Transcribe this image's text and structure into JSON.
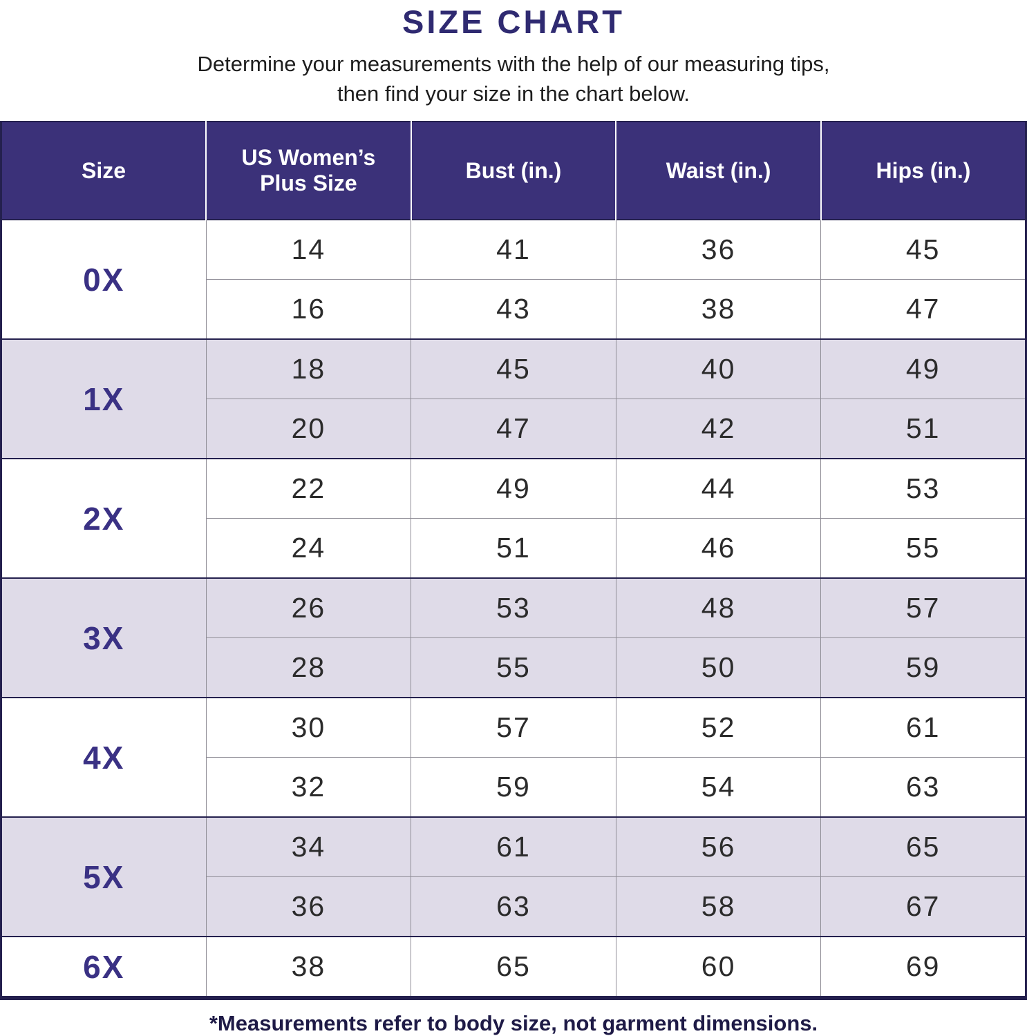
{
  "title": "SIZE CHART",
  "subtitle_line1": "Determine your measurements with the help of our measuring tips,",
  "subtitle_line2": "then find your size in the chart below.",
  "footnote": "*Measurements refer to body size, not garment dimensions.",
  "colors": {
    "header_bg": "#3b3179",
    "accent_title": "#2f2a71",
    "accent_size": "#3a3184",
    "shade": "#dfdbe8",
    "border_dark": "#24204e",
    "border_light": "#8f8d96",
    "text_dark": "#2b2b2b",
    "footnote": "#1e1a46"
  },
  "chart_data": {
    "type": "table",
    "title": "SIZE CHART",
    "headers": [
      "Size",
      "US Women’s Plus Size",
      "Bust (in.)",
      "Waist (in.)",
      "Hips (in.)"
    ],
    "groups": [
      {
        "size": "0X",
        "shaded": false,
        "rows": [
          [
            14,
            41,
            36,
            45
          ],
          [
            16,
            43,
            38,
            47
          ]
        ]
      },
      {
        "size": "1X",
        "shaded": true,
        "rows": [
          [
            18,
            45,
            40,
            49
          ],
          [
            20,
            47,
            42,
            51
          ]
        ]
      },
      {
        "size": "2X",
        "shaded": false,
        "rows": [
          [
            22,
            49,
            44,
            53
          ],
          [
            24,
            51,
            46,
            55
          ]
        ]
      },
      {
        "size": "3X",
        "shaded": true,
        "rows": [
          [
            26,
            53,
            48,
            57
          ],
          [
            28,
            55,
            50,
            59
          ]
        ]
      },
      {
        "size": "4X",
        "shaded": false,
        "rows": [
          [
            30,
            57,
            52,
            61
          ],
          [
            32,
            59,
            54,
            63
          ]
        ]
      },
      {
        "size": "5X",
        "shaded": true,
        "rows": [
          [
            34,
            61,
            56,
            65
          ],
          [
            36,
            63,
            58,
            67
          ]
        ]
      },
      {
        "size": "6X",
        "shaded": false,
        "rows": [
          [
            38,
            65,
            60,
            69
          ]
        ]
      }
    ],
    "layout": {
      "shading": "alternating size groups white/lavender",
      "size_column_rowspan": true
    }
  }
}
